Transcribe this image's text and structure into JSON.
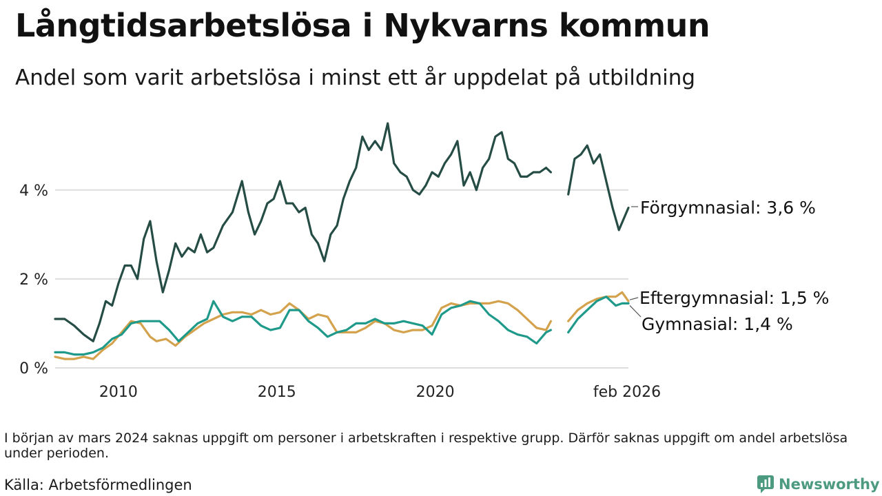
{
  "title": "Långtidsarbetslösa i Nykvarns kommun",
  "subtitle": "Andel som varit arbetslösa i minst ett år uppdelat på utbildning",
  "note": "I början av mars 2024 saknas uppgift om personer i arbetskraften i respektive grupp. Därför saknas uppgift om andel arbetslösa under perioden.",
  "source": "Källa: Arbetsförmedlingen",
  "brand": "Newsworthy",
  "colors": {
    "forgymnasial": "#264d45",
    "gymnasial": "#1f9a8a",
    "eftergymnasial": "#d4a24c",
    "grid": "#dddddd",
    "brand": "#4c9a80"
  },
  "chart_data": {
    "type": "line",
    "title": "Långtidsarbetslösa i Nykvarns kommun",
    "xlabel": "",
    "ylabel": "",
    "ylim": [
      0,
      5.8
    ],
    "xlim": [
      2008.0,
      2026.1
    ],
    "y_ticks": [
      0,
      2,
      4
    ],
    "y_tick_labels": [
      "0 %",
      "2 %",
      "4 %"
    ],
    "x_ticks": [
      2010,
      2015,
      2020,
      2026.1
    ],
    "x_tick_labels": [
      "2010",
      "2015",
      "2020",
      "feb 2026"
    ],
    "grid": true,
    "gap": [
      2023.7,
      2024.2
    ],
    "series": [
      {
        "name": "Förgymnasial",
        "end_label": "Förgymnasial: 3,6 %",
        "x": [
          2008.0,
          2008.3,
          2008.6,
          2008.9,
          2009.2,
          2009.4,
          2009.6,
          2009.8,
          2010.0,
          2010.2,
          2010.4,
          2010.6,
          2010.8,
          2011.0,
          2011.2,
          2011.4,
          2011.6,
          2011.8,
          2012.0,
          2012.2,
          2012.4,
          2012.6,
          2012.8,
          2013.0,
          2013.3,
          2013.6,
          2013.9,
          2014.1,
          2014.3,
          2014.5,
          2014.7,
          2014.9,
          2015.1,
          2015.3,
          2015.5,
          2015.7,
          2015.9,
          2016.1,
          2016.3,
          2016.5,
          2016.7,
          2016.9,
          2017.1,
          2017.3,
          2017.5,
          2017.7,
          2017.9,
          2018.1,
          2018.3,
          2018.5,
          2018.7,
          2018.9,
          2019.1,
          2019.3,
          2019.5,
          2019.7,
          2019.9,
          2020.1,
          2020.3,
          2020.5,
          2020.7,
          2020.9,
          2021.1,
          2021.3,
          2021.5,
          2021.7,
          2021.9,
          2022.1,
          2022.3,
          2022.5,
          2022.7,
          2022.9,
          2023.1,
          2023.3,
          2023.5,
          2023.65,
          2024.2,
          2024.4,
          2024.6,
          2024.8,
          2025.0,
          2025.2,
          2025.4,
          2025.6,
          2025.8,
          2026.1
        ],
        "values": [
          1.1,
          1.1,
          0.95,
          0.75,
          0.6,
          1.0,
          1.5,
          1.4,
          1.9,
          2.3,
          2.3,
          2.0,
          2.9,
          3.3,
          2.4,
          1.7,
          2.2,
          2.8,
          2.5,
          2.7,
          2.6,
          3.0,
          2.6,
          2.7,
          3.2,
          3.5,
          4.2,
          3.5,
          3.0,
          3.3,
          3.7,
          3.8,
          4.2,
          3.7,
          3.7,
          3.5,
          3.6,
          3.0,
          2.8,
          2.4,
          3.0,
          3.2,
          3.8,
          4.2,
          4.5,
          5.2,
          4.9,
          5.1,
          4.9,
          5.5,
          4.6,
          4.4,
          4.3,
          4.0,
          3.9,
          4.1,
          4.4,
          4.3,
          4.6,
          4.8,
          5.1,
          4.1,
          4.4,
          4.0,
          4.5,
          4.7,
          5.2,
          5.3,
          4.7,
          4.6,
          4.3,
          4.3,
          4.4,
          4.4,
          4.5,
          4.4,
          3.9,
          4.7,
          4.8,
          5.0,
          4.6,
          4.8,
          4.2,
          3.6,
          3.1,
          3.6
        ]
      },
      {
        "name": "Eftergymnasial",
        "end_label": "Eftergymnasial: 1,5 %",
        "x": [
          2008.0,
          2008.3,
          2008.6,
          2008.9,
          2009.2,
          2009.5,
          2009.8,
          2010.1,
          2010.4,
          2010.7,
          2011.0,
          2011.2,
          2011.5,
          2011.8,
          2012.1,
          2012.4,
          2012.7,
          2013.0,
          2013.3,
          2013.6,
          2013.9,
          2014.2,
          2014.5,
          2014.8,
          2015.1,
          2015.4,
          2015.7,
          2016.0,
          2016.3,
          2016.6,
          2016.9,
          2017.2,
          2017.5,
          2017.8,
          2018.1,
          2018.4,
          2018.7,
          2019.0,
          2019.3,
          2019.6,
          2019.9,
          2020.2,
          2020.5,
          2020.8,
          2021.1,
          2021.4,
          2021.7,
          2022.0,
          2022.3,
          2022.6,
          2022.9,
          2023.2,
          2023.5,
          2023.65,
          2024.2,
          2024.5,
          2024.8,
          2025.1,
          2025.4,
          2025.7,
          2025.9,
          2026.1
        ],
        "values": [
          0.25,
          0.2,
          0.2,
          0.25,
          0.2,
          0.4,
          0.55,
          0.8,
          1.05,
          1.0,
          0.7,
          0.6,
          0.65,
          0.5,
          0.7,
          0.85,
          1.0,
          1.1,
          1.2,
          1.25,
          1.25,
          1.2,
          1.3,
          1.2,
          1.25,
          1.45,
          1.3,
          1.1,
          1.2,
          1.15,
          0.8,
          0.8,
          0.8,
          0.9,
          1.05,
          1.0,
          0.85,
          0.8,
          0.85,
          0.85,
          0.95,
          1.35,
          1.45,
          1.4,
          1.45,
          1.45,
          1.45,
          1.5,
          1.45,
          1.3,
          1.1,
          0.9,
          0.85,
          1.05,
          1.05,
          1.3,
          1.45,
          1.55,
          1.6,
          1.6,
          1.7,
          1.5
        ]
      },
      {
        "name": "Gymnasial",
        "end_label": "Gymnasial: 1,4 %",
        "x": [
          2008.0,
          2008.3,
          2008.6,
          2008.9,
          2009.2,
          2009.5,
          2009.8,
          2010.1,
          2010.4,
          2010.7,
          2011.0,
          2011.3,
          2011.6,
          2011.9,
          2012.2,
          2012.5,
          2012.8,
          2013.0,
          2013.3,
          2013.6,
          2013.9,
          2014.2,
          2014.5,
          2014.8,
          2015.1,
          2015.4,
          2015.7,
          2016.0,
          2016.3,
          2016.6,
          2016.9,
          2017.2,
          2017.5,
          2017.8,
          2018.1,
          2018.4,
          2018.7,
          2019.0,
          2019.3,
          2019.6,
          2019.9,
          2020.2,
          2020.5,
          2020.8,
          2021.1,
          2021.4,
          2021.7,
          2022.0,
          2022.3,
          2022.6,
          2022.9,
          2023.2,
          2023.5,
          2023.65,
          2024.2,
          2024.5,
          2024.8,
          2025.1,
          2025.4,
          2025.7,
          2025.9,
          2026.1
        ],
        "values": [
          0.35,
          0.35,
          0.3,
          0.3,
          0.35,
          0.45,
          0.65,
          0.75,
          1.0,
          1.05,
          1.05,
          1.05,
          0.85,
          0.6,
          0.8,
          1.0,
          1.1,
          1.5,
          1.15,
          1.05,
          1.15,
          1.15,
          0.95,
          0.85,
          0.9,
          1.3,
          1.3,
          1.05,
          0.9,
          0.7,
          0.8,
          0.85,
          1.0,
          1.0,
          1.1,
          1.0,
          1.0,
          1.05,
          1.0,
          0.95,
          0.75,
          1.2,
          1.35,
          1.4,
          1.5,
          1.45,
          1.2,
          1.05,
          0.85,
          0.75,
          0.7,
          0.55,
          0.8,
          0.85,
          0.8,
          1.1,
          1.3,
          1.5,
          1.6,
          1.4,
          1.45,
          1.45
        ]
      }
    ]
  }
}
